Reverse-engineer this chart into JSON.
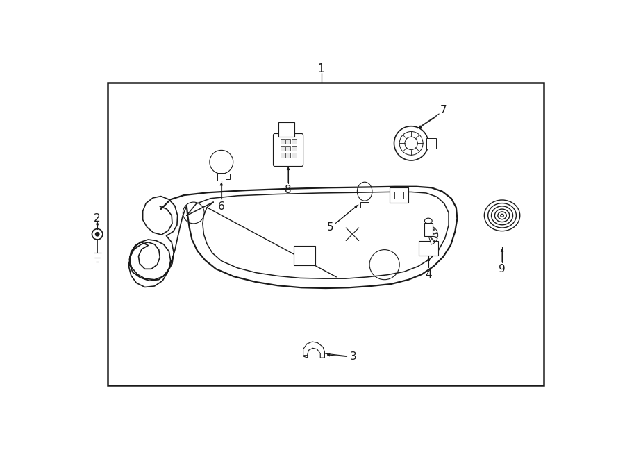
{
  "bg_color": "#ffffff",
  "line_color": "#1a1a1a",
  "fig_width": 9.0,
  "fig_height": 6.61
}
